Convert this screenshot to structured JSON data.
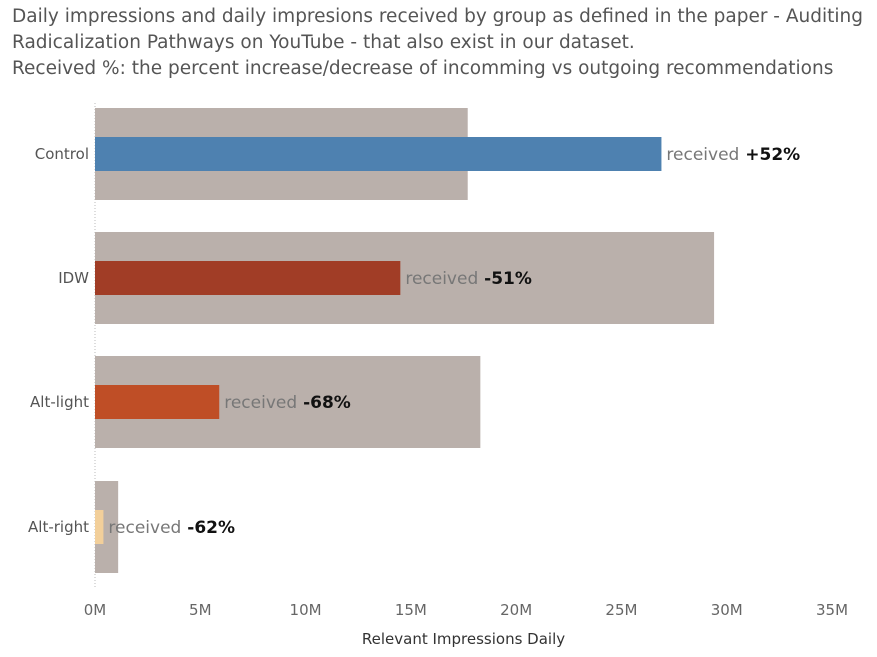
{
  "title_lines": [
    "Daily impressions and daily impresions received by group as defined in the paper - Auditing",
    "Radicalization Pathways on YouTube -  that also exist in our dataset.",
    "Received %: the percent increase/decrease of incomming vs  outgoing recommendations"
  ],
  "chart_data": {
    "type": "bar",
    "orientation": "horizontal",
    "categories": [
      "Control",
      "IDW",
      "Alt-light",
      "Alt-right"
    ],
    "series": [
      {
        "role": "daily",
        "values": [
          17.7,
          29.4,
          18.3,
          1.1
        ],
        "color": "#bab0ab"
      },
      {
        "role": "received",
        "values": [
          26.9,
          14.5,
          5.9,
          0.4
        ],
        "colors": [
          "#4e81b0",
          "#a13d26",
          "#bf4e26",
          "#f2cf9a"
        ]
      }
    ],
    "labels": [
      {
        "word": "received",
        "pct": "+52%"
      },
      {
        "word": "received",
        "pct": "-51%"
      },
      {
        "word": "received",
        "pct": "-68%"
      },
      {
        "word": "received",
        "pct": "-62%"
      }
    ],
    "xlabel": "Relevant Impressions Daily",
    "xlim": [
      0,
      35
    ],
    "x_unit": "M",
    "ticks": [
      "0M",
      "5M",
      "10M",
      "15M",
      "20M",
      "25M",
      "30M",
      "35M"
    ],
    "tick_values": [
      0,
      5,
      10,
      15,
      20,
      25,
      30,
      35
    ]
  }
}
